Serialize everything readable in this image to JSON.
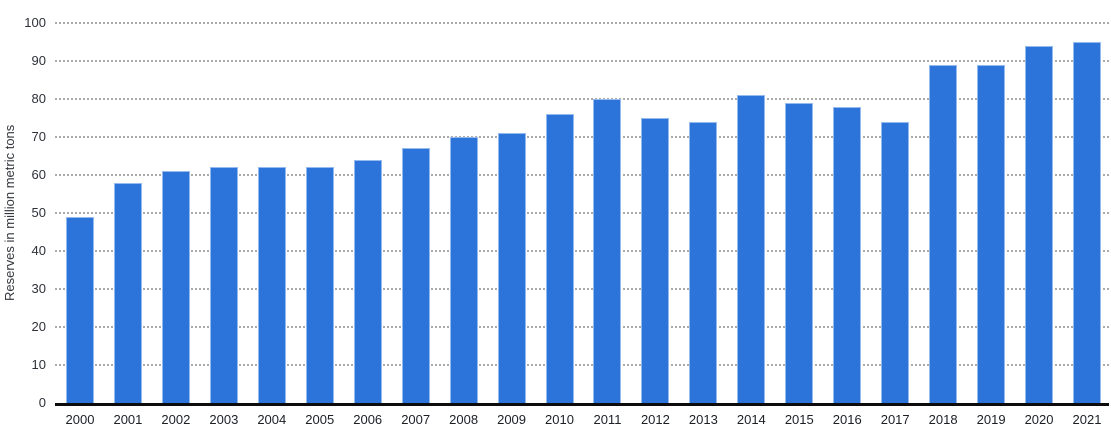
{
  "chart_data": {
    "type": "bar",
    "categories": [
      "2000",
      "2001",
      "2002",
      "2003",
      "2004",
      "2005",
      "2006",
      "2007",
      "2008",
      "2009",
      "2010",
      "2011",
      "2012",
      "2013",
      "2014",
      "2015",
      "2016",
      "2017",
      "2018",
      "2019",
      "2020",
      "2021"
    ],
    "values": [
      49,
      58,
      61,
      62,
      62,
      62,
      64,
      67,
      70,
      71,
      76,
      80,
      75,
      74,
      81,
      79,
      78,
      74,
      89,
      89,
      94,
      95
    ],
    "title": "",
    "xlabel": "",
    "ylabel": "Reserves in million metric tons",
    "ylim": [
      0,
      100
    ],
    "ytick_step": 10,
    "legend": "none",
    "grid": "horizontal-dotted",
    "colors": {
      "bar_fill": "#2d74da",
      "bar_edge": "#94baee",
      "gridline": "#ababab",
      "axis_line": "#0c0c0c",
      "tick_label": "#2e3138",
      "axis_title": "#33363c"
    }
  }
}
